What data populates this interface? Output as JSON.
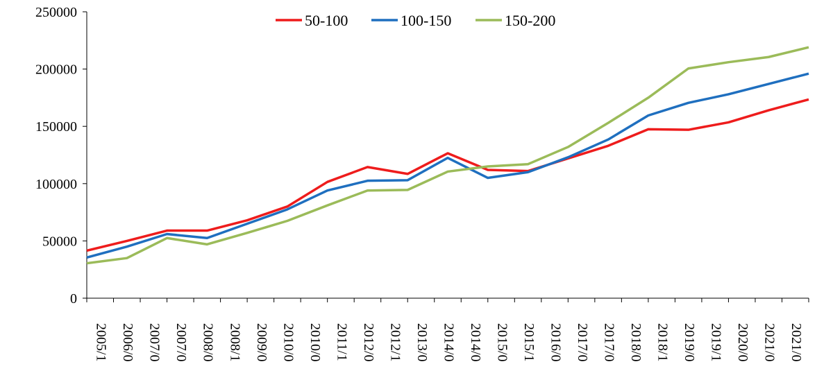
{
  "chart_data": {
    "type": "line",
    "title": "",
    "xlabel": "",
    "ylabel": "",
    "ylim": [
      0,
      250000
    ],
    "yticks": [
      0,
      50000,
      100000,
      150000,
      200000,
      250000
    ],
    "grid": false,
    "legend_position": "top-center",
    "x": [
      "2005/1",
      "2006/0",
      "2007/0",
      "2007/0",
      "2008/0",
      "2008/1",
      "2009/0",
      "2010/0",
      "2010/0",
      "2011/1",
      "2012/0",
      "2012/1",
      "2013/0",
      "2014/0",
      "2014/0",
      "2015/0",
      "2015/1",
      "2016/0",
      "2017/0",
      "2017/0",
      "2018/0",
      "2018/1",
      "2019/0",
      "2019/1",
      "2020/0",
      "2021/0",
      "2021/0"
    ],
    "x_label_indices": [
      0,
      1,
      2,
      3,
      4,
      5,
      6,
      7,
      8,
      9,
      10,
      11,
      12,
      13,
      14,
      15,
      16,
      17,
      18,
      19,
      20,
      21,
      22,
      23,
      24,
      25,
      26
    ],
    "series": [
      {
        "name": "50-100",
        "color": "#ee1c1c",
        "points": [
          [
            0,
            41500
          ],
          [
            1,
            50000
          ],
          [
            2,
            59000
          ],
          [
            3,
            59000
          ],
          [
            4,
            68000
          ],
          [
            5,
            80000
          ],
          [
            6,
            101500
          ],
          [
            7,
            114500
          ],
          [
            8,
            108500
          ],
          [
            9,
            126500
          ],
          [
            10,
            112000
          ],
          [
            11,
            111000
          ],
          [
            12,
            122000
          ],
          [
            13,
            133000
          ],
          [
            14,
            147500
          ],
          [
            15,
            147000
          ],
          [
            16,
            153500
          ],
          [
            17,
            164000
          ],
          [
            18,
            173500
          ]
        ]
      },
      {
        "name": "100-150",
        "color": "#1f6fbf",
        "points": [
          [
            0,
            35500
          ],
          [
            1,
            45000
          ],
          [
            2,
            56000
          ],
          [
            3,
            52500
          ],
          [
            4,
            65000
          ],
          [
            5,
            77500
          ],
          [
            6,
            94000
          ],
          [
            7,
            102500
          ],
          [
            8,
            103000
          ],
          [
            9,
            122500
          ],
          [
            10,
            105000
          ],
          [
            11,
            110000
          ],
          [
            12,
            123000
          ],
          [
            13,
            138500
          ],
          [
            14,
            159500
          ],
          [
            15,
            170500
          ],
          [
            16,
            178000
          ],
          [
            17,
            187000
          ],
          [
            18,
            196000
          ]
        ]
      },
      {
        "name": "150-200",
        "color": "#9bbb59",
        "points": [
          [
            0,
            30500
          ],
          [
            1,
            35000
          ],
          [
            2,
            52500
          ],
          [
            3,
            47000
          ],
          [
            4,
            57000
          ],
          [
            5,
            67500
          ],
          [
            6,
            81000
          ],
          [
            7,
            94000
          ],
          [
            8,
            94500
          ],
          [
            9,
            110500
          ],
          [
            10,
            115000
          ],
          [
            11,
            117000
          ],
          [
            12,
            132000
          ],
          [
            13,
            153000
          ],
          [
            14,
            175000
          ],
          [
            15,
            200500
          ],
          [
            16,
            206000
          ],
          [
            17,
            210500
          ],
          [
            18,
            219000
          ]
        ]
      }
    ]
  }
}
